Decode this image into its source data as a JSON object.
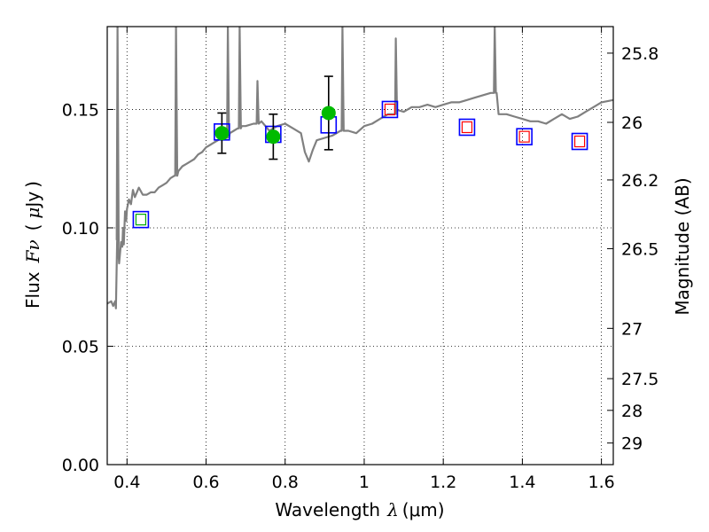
{
  "chart_data": {
    "type": "scatter",
    "xlabel": {
      "text": "Wavelength",
      "symbol": "λ",
      "unit": "(μm)"
    },
    "ylabel": {
      "text": "Flux",
      "symbol": "Fν",
      "unit_open": "(",
      "unit_mu": "μ",
      "unit_jy": "Jy",
      "unit_close": ")"
    },
    "y2label": "Magnitude (AB)",
    "xlim": [
      0.35,
      1.63
    ],
    "ylim": [
      0.0,
      0.185
    ],
    "grid": true,
    "grid_style": "dotted",
    "x_ticks": [
      {
        "value": 0.4,
        "label": "0.4"
      },
      {
        "value": 0.6,
        "label": "0.6"
      },
      {
        "value": 0.8,
        "label": "0.8"
      },
      {
        "value": 1.0,
        "label": "1"
      },
      {
        "value": 1.2,
        "label": "1.2"
      },
      {
        "value": 1.4,
        "label": "1.4"
      },
      {
        "value": 1.6,
        "label": "1.6"
      }
    ],
    "y_ticks": [
      {
        "value": 0.0,
        "label": "0.00"
      },
      {
        "value": 0.05,
        "label": "0.05"
      },
      {
        "value": 0.1,
        "label": "0.10"
      },
      {
        "value": 0.15,
        "label": "0.15"
      }
    ],
    "y2_ticks": [
      {
        "mag": 25.8,
        "label": "25.8"
      },
      {
        "mag": 26.0,
        "label": "26"
      },
      {
        "mag": 26.2,
        "label": "26.2"
      },
      {
        "mag": 26.5,
        "label": "26.5"
      },
      {
        "mag": 27.0,
        "label": "27"
      },
      {
        "mag": 27.5,
        "label": "27.5"
      },
      {
        "mag": 28.0,
        "label": "28"
      },
      {
        "mag": 29.0,
        "label": "29"
      }
    ],
    "colors": {
      "sed": "#808080",
      "observed": "#00bb00",
      "model_box": "#0000ff",
      "inner_nir": "#ff0000",
      "inner_opt": "#00aa00",
      "errorbar": "#000000",
      "grid": "#000000"
    },
    "series": [
      {
        "kind": "sed-template",
        "points": [
          [
            0.35,
            0.068
          ],
          [
            0.36,
            0.069
          ],
          [
            0.365,
            0.067
          ],
          [
            0.37,
            0.069
          ],
          [
            0.372,
            0.066
          ],
          [
            0.375,
            0.095
          ],
          [
            0.378,
            0.09
          ],
          [
            0.38,
            0.085
          ],
          [
            0.385,
            0.094
          ],
          [
            0.388,
            0.092
          ],
          [
            0.39,
            0.1
          ],
          [
            0.392,
            0.093
          ],
          [
            0.395,
            0.107
          ],
          [
            0.398,
            0.103
          ],
          [
            0.4,
            0.108
          ],
          [
            0.405,
            0.112
          ],
          [
            0.41,
            0.11
          ],
          [
            0.415,
            0.116
          ],
          [
            0.42,
            0.113
          ],
          [
            0.43,
            0.117
          ],
          [
            0.44,
            0.114
          ],
          [
            0.45,
            0.114
          ],
          [
            0.46,
            0.115
          ],
          [
            0.47,
            0.115
          ],
          [
            0.48,
            0.117
          ],
          [
            0.49,
            0.118
          ],
          [
            0.5,
            0.119
          ],
          [
            0.51,
            0.121
          ],
          [
            0.52,
            0.122
          ],
          [
            0.53,
            0.124
          ],
          [
            0.54,
            0.126
          ],
          [
            0.55,
            0.127
          ],
          [
            0.56,
            0.128
          ],
          [
            0.57,
            0.129
          ],
          [
            0.58,
            0.131
          ],
          [
            0.59,
            0.132
          ],
          [
            0.6,
            0.134
          ],
          [
            0.61,
            0.135
          ],
          [
            0.62,
            0.136
          ],
          [
            0.63,
            0.137
          ],
          [
            0.64,
            0.138
          ],
          [
            0.65,
            0.138
          ],
          [
            0.66,
            0.14
          ],
          [
            0.67,
            0.141
          ],
          [
            0.68,
            0.142
          ],
          [
            0.69,
            0.143
          ],
          [
            0.7,
            0.143
          ],
          [
            0.72,
            0.144
          ],
          [
            0.74,
            0.145
          ],
          [
            0.76,
            0.141
          ],
          [
            0.78,
            0.143
          ],
          [
            0.8,
            0.144
          ],
          [
            0.82,
            0.142
          ],
          [
            0.84,
            0.14
          ],
          [
            0.85,
            0.132
          ],
          [
            0.86,
            0.128
          ],
          [
            0.87,
            0.133
          ],
          [
            0.88,
            0.137
          ],
          [
            0.9,
            0.138
          ],
          [
            0.92,
            0.139
          ],
          [
            0.94,
            0.141
          ],
          [
            0.96,
            0.141
          ],
          [
            0.98,
            0.14
          ],
          [
            1.0,
            0.143
          ],
          [
            1.02,
            0.144
          ],
          [
            1.04,
            0.146
          ],
          [
            1.06,
            0.148
          ],
          [
            1.08,
            0.15
          ],
          [
            1.1,
            0.149
          ],
          [
            1.12,
            0.151
          ],
          [
            1.14,
            0.151
          ],
          [
            1.16,
            0.152
          ],
          [
            1.18,
            0.151
          ],
          [
            1.2,
            0.152
          ],
          [
            1.22,
            0.153
          ],
          [
            1.24,
            0.153
          ],
          [
            1.26,
            0.154
          ],
          [
            1.28,
            0.155
          ],
          [
            1.3,
            0.156
          ],
          [
            1.32,
            0.157
          ],
          [
            1.335,
            0.157
          ],
          [
            1.34,
            0.148
          ],
          [
            1.36,
            0.148
          ],
          [
            1.38,
            0.147
          ],
          [
            1.4,
            0.146
          ],
          [
            1.42,
            0.145
          ],
          [
            1.44,
            0.145
          ],
          [
            1.46,
            0.144
          ],
          [
            1.48,
            0.146
          ],
          [
            1.5,
            0.148
          ],
          [
            1.52,
            0.146
          ],
          [
            1.54,
            0.147
          ],
          [
            1.56,
            0.149
          ],
          [
            1.58,
            0.151
          ],
          [
            1.6,
            0.153
          ],
          [
            1.63,
            0.154
          ]
        ],
        "spikes": [
          {
            "x": 0.376,
            "peak": 0.185
          },
          {
            "x": 0.524,
            "peak": 0.185
          },
          {
            "x": 0.655,
            "peak": 0.185
          },
          {
            "x": 0.685,
            "peak": 0.185
          },
          {
            "x": 0.73,
            "peak": 0.162
          },
          {
            "x": 0.945,
            "peak": 0.185
          },
          {
            "x": 1.08,
            "peak": 0.18
          },
          {
            "x": 1.33,
            "peak": 0.185
          }
        ]
      },
      {
        "kind": "observed-photometry",
        "points": [
          {
            "x": 0.64,
            "y": 0.14,
            "err": 0.0085
          },
          {
            "x": 0.77,
            "y": 0.1385,
            "err": 0.0095
          },
          {
            "x": 0.91,
            "y": 0.1485,
            "err": 0.0155
          }
        ]
      },
      {
        "kind": "model-photometry",
        "points": [
          {
            "x": 0.435,
            "y": 0.1035,
            "inner": "opt"
          },
          {
            "x": 0.64,
            "y": 0.1405,
            "inner": "none"
          },
          {
            "x": 0.77,
            "y": 0.1395,
            "inner": "none"
          },
          {
            "x": 0.91,
            "y": 0.1435,
            "inner": "none"
          },
          {
            "x": 1.065,
            "y": 0.15,
            "inner": "nir"
          },
          {
            "x": 1.26,
            "y": 0.1425,
            "inner": "nir"
          },
          {
            "x": 1.405,
            "y": 0.1385,
            "inner": "nir"
          },
          {
            "x": 1.545,
            "y": 0.1365,
            "inner": "nir"
          }
        ]
      }
    ]
  }
}
